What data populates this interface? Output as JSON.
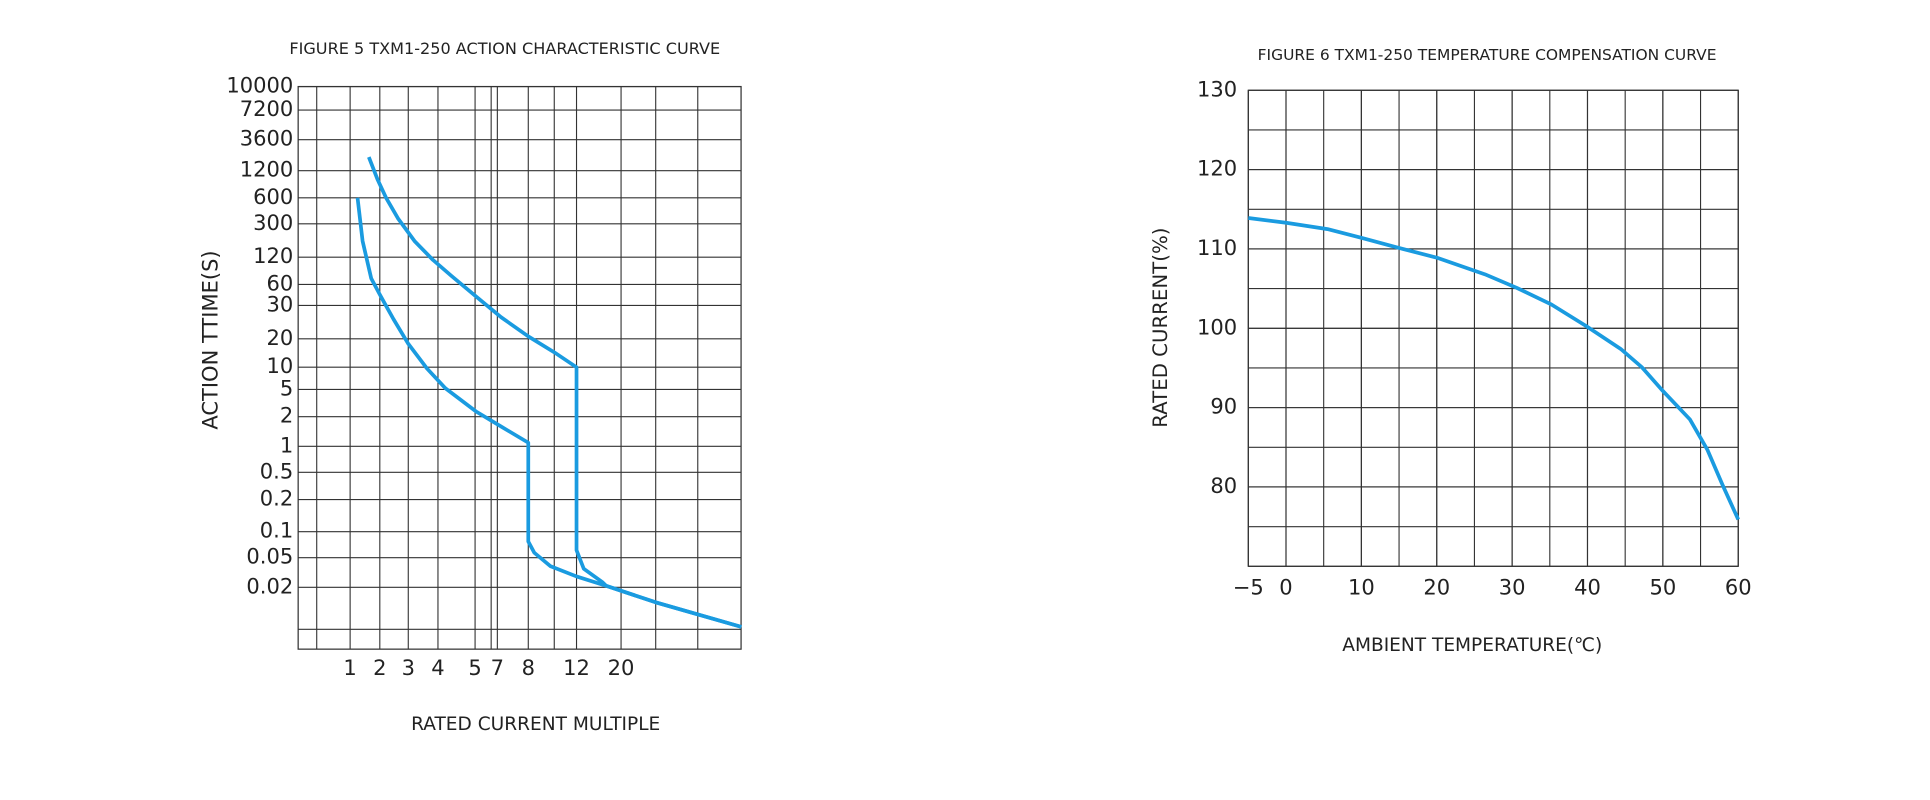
{
  "chart_data": [
    {
      "type": "line",
      "title": "FIGURE 5 TXM1-250 ACTION CHARACTERISTIC CURVE",
      "x_label": "RATED CURRENT MULTIPLE",
      "y_label": "ACTION TTIME(S)",
      "yscale": "log",
      "grid": true,
      "xticks": [
        1,
        2,
        3,
        4,
        5,
        7,
        8,
        12,
        20
      ],
      "yticks": [
        10000,
        7200,
        3600,
        1200,
        600,
        300,
        120,
        60,
        30,
        20,
        10,
        5,
        2,
        1,
        0.5,
        0.2,
        0.1,
        0.05,
        0.02
      ],
      "series": [
        {
          "color": "#1a9be0",
          "x": [
            1.25,
            1.42,
            1.71,
            2.04,
            2.48,
            3,
            3.63,
            4.2,
            5.06,
            7.12,
            8,
            8,
            8.5,
            9.85,
            12,
            17.3,
            26.2,
            41.6
          ],
          "values": [
            600,
            187,
            70,
            40,
            25.4,
            17.7,
            9.6,
            5.2,
            2.4,
            1.59,
            1.09,
            0.077,
            0.057,
            0.0383,
            0.028,
            0.021,
            0.0126,
            0.0059
          ]
        },
        {
          "color": "#1a9be0",
          "x": [
            1.63,
            1.92,
            2.22,
            2.65,
            3.21,
            3.83,
            4.37,
            5.11,
            7.12,
            8,
            10.15,
            12,
            12,
            13.3,
            16.7,
            17.3,
            26.2,
            41.6
          ],
          "values": [
            1944,
            964,
            600,
            342,
            187,
            112,
            74,
            40,
            26,
            20.6,
            14.4,
            10,
            0.061,
            0.0355,
            0.0233,
            0.021,
            0.0126,
            0.0059
          ]
        }
      ]
    },
    {
      "type": "line",
      "title": "FIGURE 6 TXM1-250 TEMPERATURE COMPENSATION CURVE",
      "x_label": "AMBIENT TEMPERATURE(℃)",
      "y_label": "RATED CURRENT(%)",
      "grid": true,
      "xlim": [
        -5,
        60
      ],
      "ylim": [
        70,
        130
      ],
      "xticks": [
        {
          "value": -5,
          "label": "−5"
        },
        0,
        10,
        20,
        30,
        40,
        50,
        60
      ],
      "yticks": [
        80,
        90,
        100,
        110,
        120,
        130
      ],
      "series": [
        {
          "color": "#1a9be0",
          "x": [
            -5,
            0,
            5.5,
            10,
            15.5,
            20,
            26.4,
            30.6,
            35.2,
            39.8,
            44.4,
            47.2,
            50,
            53.6,
            55.9,
            57.9,
            60
          ],
          "values": [
            113.9,
            113.3,
            112.5,
            111.4,
            110,
            108.9,
            106.8,
            105.1,
            103,
            100.3,
            97.4,
            95.1,
            92.1,
            88.5,
            84.7,
            80.3,
            75.9
          ]
        }
      ]
    }
  ]
}
